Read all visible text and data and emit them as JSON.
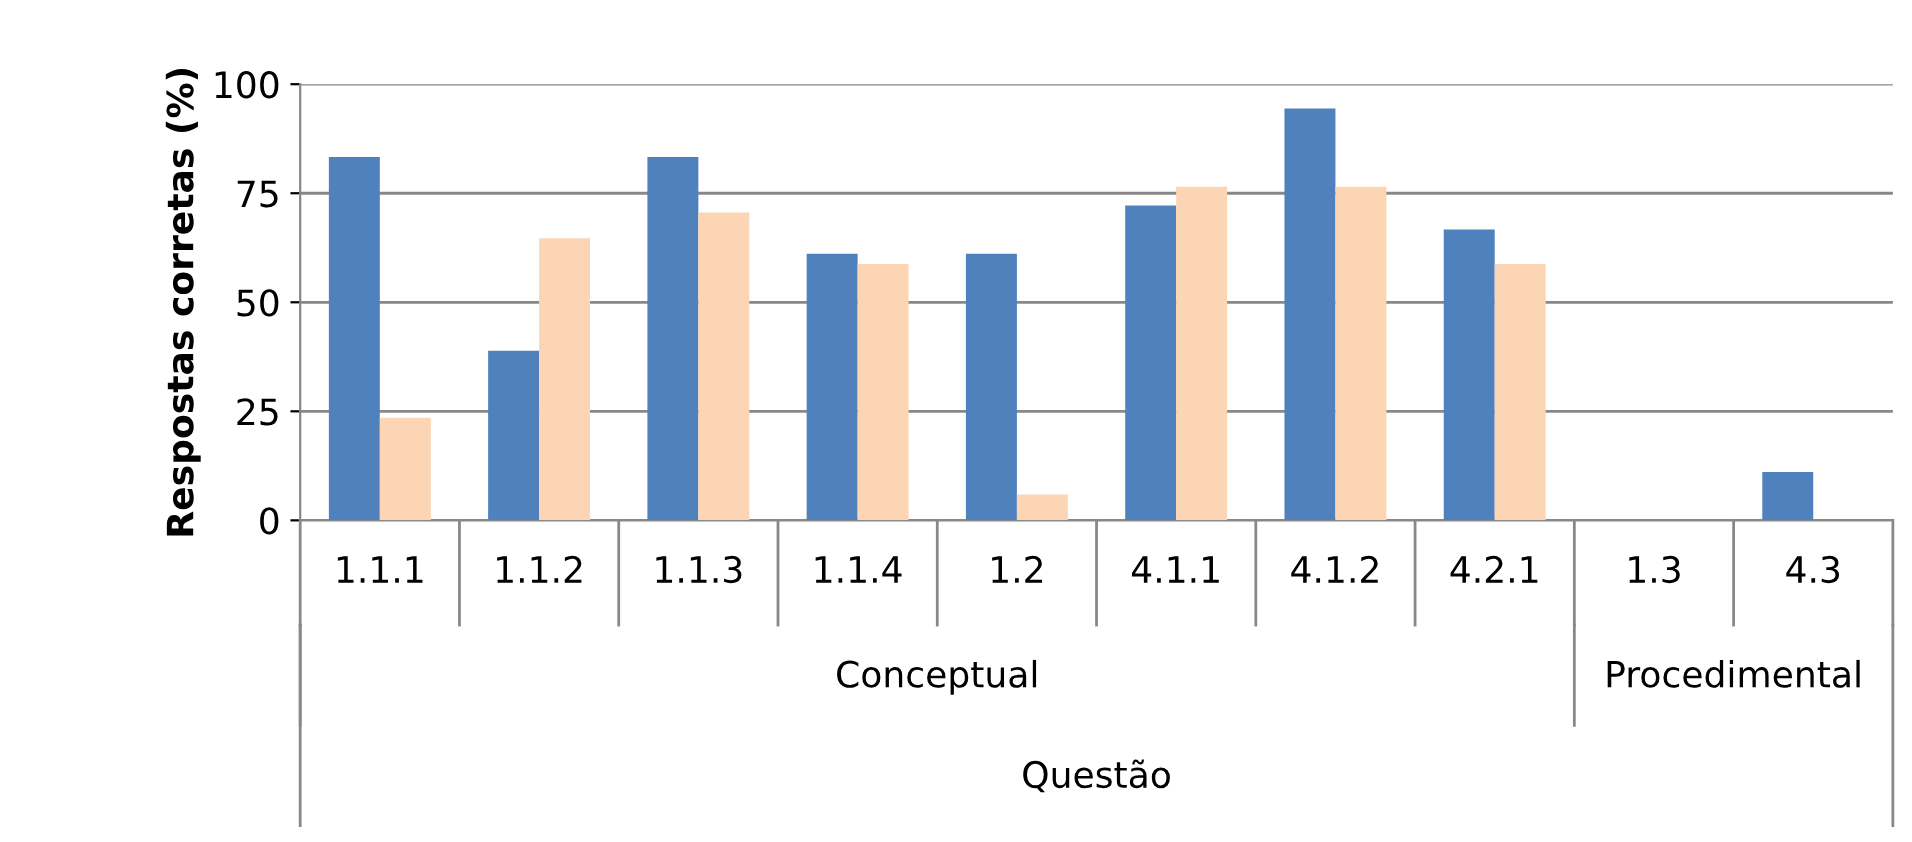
{
  "chart_data": {
    "type": "bar",
    "ylabel": "Respostas corretas (%)",
    "xlabel": "Questão",
    "categories": [
      "1.1.1",
      "1.1.2",
      "1.1.3",
      "1.1.4",
      "1.2",
      "4.1.1",
      "4.1.2",
      "4.2.1",
      "1.3",
      "4.3"
    ],
    "series": [
      {
        "color": "#4f81bd",
        "values": [
          83.3,
          38.9,
          83.3,
          61.1,
          61.1,
          72.2,
          94.4,
          66.7,
          0,
          11.1
        ]
      },
      {
        "color": "#fcd5b5",
        "values": [
          23.5,
          64.7,
          70.6,
          58.8,
          5.9,
          76.5,
          76.5,
          58.8,
          0,
          0
        ]
      }
    ],
    "annotations": [
      "Conceptual",
      "Procedimental"
    ],
    "ylim": [
      0,
      100
    ],
    "yticks": [
      0,
      25,
      50,
      75,
      100
    ],
    "grid": "y",
    "legend": false
  }
}
